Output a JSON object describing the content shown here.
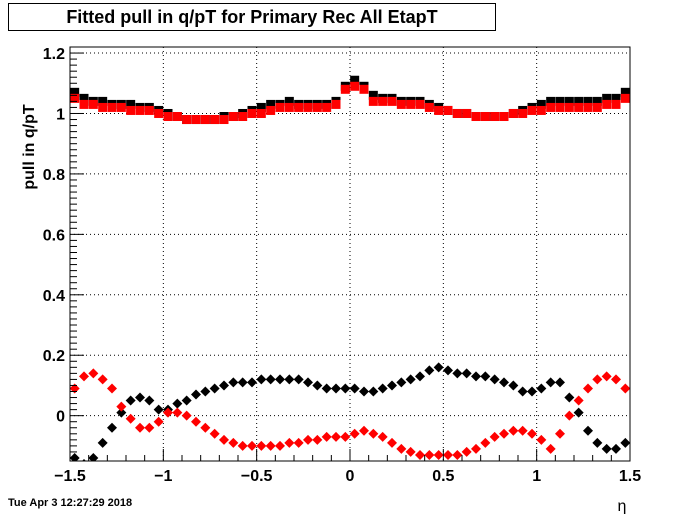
{
  "title": "Fitted pull in q/pT for Primary Rec All EtapT",
  "timestamp": "Tue Apr  3 12:27:29 2018",
  "chart_data": {
    "type": "scatter",
    "xlabel": "η",
    "ylabel": "pull in q/pT",
    "xlim": [
      -1.5,
      1.5
    ],
    "ylim": [
      -0.15,
      1.22
    ],
    "xticks": [
      -1.5,
      -1,
      -0.5,
      0,
      0.5,
      1,
      1.5
    ],
    "xtick_labels": [
      "−1.5",
      "−1",
      "−0.5",
      "0",
      "0.5",
      "1",
      "1.5"
    ],
    "yticks": [
      0,
      0.2,
      0.4,
      0.6,
      0.8,
      1,
      1.2
    ],
    "ytick_labels": [
      "0",
      "0.2",
      "0.4",
      "0.6",
      "0.8",
      "1",
      "1.2"
    ],
    "grid": true,
    "x": [
      -1.475,
      -1.425,
      -1.375,
      -1.325,
      -1.275,
      -1.225,
      -1.175,
      -1.125,
      -1.075,
      -1.025,
      -0.975,
      -0.925,
      -0.875,
      -0.825,
      -0.775,
      -0.725,
      -0.675,
      -0.625,
      -0.575,
      -0.525,
      -0.475,
      -0.425,
      -0.375,
      -0.325,
      -0.275,
      -0.225,
      -0.175,
      -0.125,
      -0.075,
      -0.025,
      0.025,
      0.075,
      0.125,
      0.175,
      0.225,
      0.275,
      0.325,
      0.375,
      0.425,
      0.475,
      0.525,
      0.575,
      0.625,
      0.675,
      0.725,
      0.775,
      0.825,
      0.875,
      0.925,
      0.975,
      1.025,
      1.075,
      1.125,
      1.175,
      1.225,
      1.275,
      1.325,
      1.375,
      1.425,
      1.475
    ],
    "series": [
      {
        "color": "#000000",
        "marker": "square",
        "values": [
          1.07,
          1.05,
          1.04,
          1.04,
          1.03,
          1.03,
          1.03,
          1.02,
          1.02,
          1.01,
          1.0,
          0.99,
          0.98,
          0.98,
          0.98,
          0.98,
          0.99,
          0.99,
          1.0,
          1.01,
          1.02,
          1.03,
          1.03,
          1.04,
          1.03,
          1.03,
          1.03,
          1.03,
          1.04,
          1.09,
          1.11,
          1.09,
          1.06,
          1.05,
          1.05,
          1.04,
          1.04,
          1.04,
          1.03,
          1.02,
          1.01,
          1.0,
          1.0,
          0.99,
          0.99,
          0.99,
          0.99,
          1.0,
          1.01,
          1.02,
          1.03,
          1.04,
          1.04,
          1.04,
          1.04,
          1.04,
          1.04,
          1.05,
          1.05,
          1.07
        ]
      },
      {
        "color": "#ff0000",
        "marker": "square",
        "values": [
          1.05,
          1.03,
          1.03,
          1.02,
          1.02,
          1.02,
          1.01,
          1.01,
          1.01,
          1.0,
          0.99,
          0.99,
          0.98,
          0.98,
          0.98,
          0.98,
          0.98,
          0.99,
          0.99,
          1.0,
          1.0,
          1.01,
          1.02,
          1.02,
          1.02,
          1.02,
          1.02,
          1.02,
          1.03,
          1.08,
          1.09,
          1.08,
          1.04,
          1.04,
          1.04,
          1.03,
          1.03,
          1.03,
          1.02,
          1.01,
          1.01,
          1.0,
          1.0,
          0.99,
          0.99,
          0.99,
          0.99,
          1.0,
          1.0,
          1.01,
          1.01,
          1.02,
          1.02,
          1.02,
          1.02,
          1.02,
          1.02,
          1.03,
          1.03,
          1.05
        ]
      },
      {
        "color": "#000000",
        "marker": "diamond",
        "values": [
          -0.14,
          -0.16,
          -0.14,
          -0.09,
          -0.04,
          0.01,
          0.05,
          0.06,
          0.05,
          0.02,
          0.02,
          0.04,
          0.05,
          0.07,
          0.08,
          0.09,
          0.1,
          0.11,
          0.11,
          0.11,
          0.12,
          0.12,
          0.12,
          0.12,
          0.12,
          0.11,
          0.1,
          0.09,
          0.09,
          0.09,
          0.09,
          0.08,
          0.08,
          0.09,
          0.1,
          0.11,
          0.12,
          0.13,
          0.15,
          0.16,
          0.15,
          0.14,
          0.14,
          0.13,
          0.13,
          0.12,
          0.11,
          0.1,
          0.08,
          0.08,
          0.09,
          0.11,
          0.11,
          0.06,
          0.01,
          -0.05,
          -0.09,
          -0.11,
          -0.11,
          -0.09
        ]
      },
      {
        "color": "#ff0000",
        "marker": "diamond",
        "values": [
          0.09,
          0.13,
          0.14,
          0.12,
          0.09,
          0.03,
          -0.01,
          -0.04,
          -0.04,
          -0.02,
          0.01,
          0.01,
          0.0,
          -0.02,
          -0.04,
          -0.06,
          -0.08,
          -0.09,
          -0.1,
          -0.1,
          -0.1,
          -0.1,
          -0.1,
          -0.09,
          -0.09,
          -0.08,
          -0.08,
          -0.07,
          -0.07,
          -0.07,
          -0.06,
          -0.05,
          -0.06,
          -0.07,
          -0.09,
          -0.11,
          -0.12,
          -0.13,
          -0.13,
          -0.13,
          -0.13,
          -0.13,
          -0.12,
          -0.11,
          -0.09,
          -0.07,
          -0.06,
          -0.05,
          -0.05,
          -0.06,
          -0.08,
          -0.11,
          -0.06,
          0.0,
          0.05,
          0.09,
          0.12,
          0.13,
          0.12,
          0.09
        ]
      }
    ]
  }
}
